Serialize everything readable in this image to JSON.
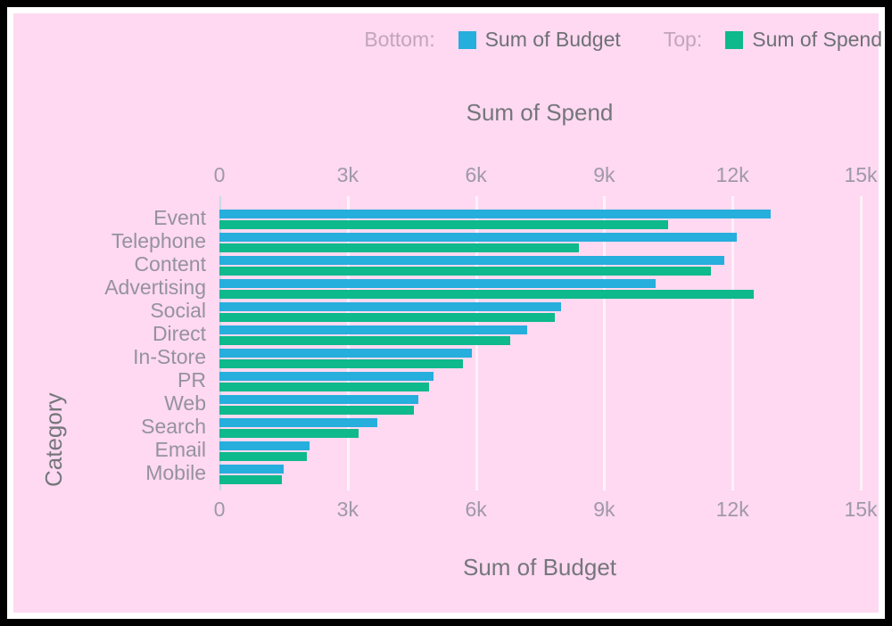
{
  "colors": {
    "frame": "#000000",
    "inner_border": "#ffffff",
    "panel_bg": "#fed9f1",
    "budget": "#26aedd",
    "spend": "#0eb98c",
    "axis_title_text": "#75767c",
    "tick_text": "#9f98aa",
    "category_text": "#95929d",
    "legend_position_text": "#c2a5bd"
  },
  "legend": {
    "items": [
      {
        "position_label": "Bottom:",
        "series": "Sum of Budget",
        "color": "#26aedd",
        "key": "budget"
      },
      {
        "position_label": "Top:",
        "series": "Sum of Spend",
        "color": "#0eb98c",
        "key": "spend"
      }
    ]
  },
  "chart_data": {
    "type": "bar",
    "orientation": "horizontal",
    "title_top_axis": "Sum of Spend",
    "title_bottom_axis": "Sum of Budget",
    "ylabel": "Category",
    "grid": true,
    "legend_position": "top-right",
    "axis_range": [
      0,
      15000
    ],
    "tick_values": [
      0,
      3000,
      6000,
      9000,
      12000,
      15000
    ],
    "tick_labels": [
      "0",
      "3k",
      "6k",
      "9k",
      "12k",
      "15k"
    ],
    "categories": [
      "Event",
      "Telephone",
      "Content",
      "Advertising",
      "Social",
      "Direct",
      "In-Store",
      "PR",
      "Web",
      "Search",
      "Email",
      "Mobile"
    ],
    "series": [
      {
        "name": "Sum of Budget",
        "axis": "bottom",
        "color": "#26aedd",
        "values": [
          12900,
          12100,
          11800,
          10200,
          8000,
          7200,
          5900,
          5000,
          4650,
          3700,
          2100,
          1500
        ]
      },
      {
        "name": "Sum of Spend",
        "axis": "top",
        "color": "#0eb98c",
        "values": [
          10500,
          8400,
          11500,
          12500,
          7850,
          6800,
          5700,
          4900,
          4550,
          3250,
          2050,
          1450
        ]
      }
    ]
  }
}
